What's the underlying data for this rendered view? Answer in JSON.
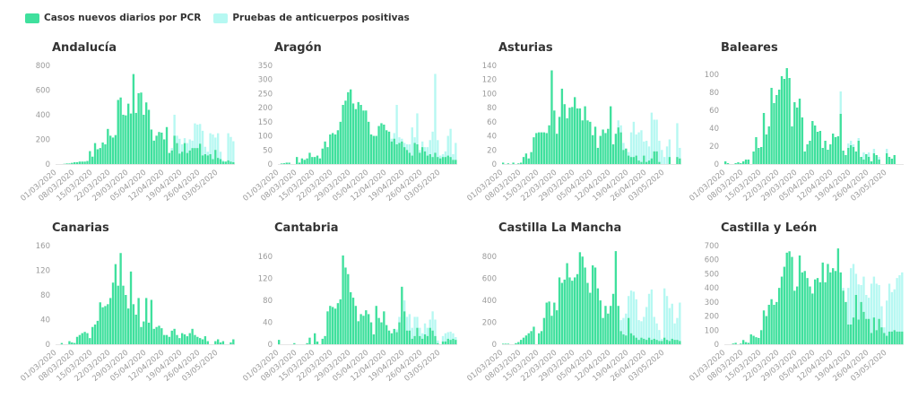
{
  "colors": {
    "pcr": "#3fe09d",
    "antibody": "#b6f8f2"
  },
  "chart_data": {
    "type": "bar",
    "stacked": true,
    "legend": {
      "position": "top-left",
      "pcr_label": "Casos nuevos diarios por PCR",
      "antibody_label": "Pruebas de anticuerpos positivas"
    },
    "start_date": "01/03/2020",
    "x_tick_labels": [
      "01/03/2020",
      "08/03/2020",
      "15/03/2020",
      "22/03/2020",
      "29/03/2020",
      "05/04/2020",
      "12/04/2020",
      "19/04/2020",
      "26/04/2020",
      "03/05/2020"
    ],
    "x_tick_every_days": 7,
    "antibody_start_date": "14/04/2020",
    "panels": [
      {
        "title": "Andalucía",
        "ylim": [
          0,
          800
        ],
        "yticks": [
          0,
          200,
          400,
          600,
          800
        ],
        "pcr": [
          0,
          0,
          0,
          2,
          5,
          5,
          10,
          15,
          15,
          20,
          20,
          20,
          25,
          105,
          60,
          170,
          120,
          130,
          175,
          160,
          285,
          230,
          215,
          235,
          520,
          540,
          400,
          395,
          490,
          410,
          730,
          415,
          575,
          580,
          400,
          500,
          440,
          280,
          190,
          230,
          260,
          255,
          200,
          300,
          90,
          110,
          230,
          170,
          85,
          100,
          170,
          90,
          110,
          130,
          130,
          130,
          165,
          70,
          80,
          70,
          80,
          40,
          115,
          50,
          40,
          20,
          20,
          30,
          20,
          15
        ],
        "antibody": [
          0,
          20,
          170,
          60,
          120,
          60,
          40,
          80,
          90,
          60,
          200,
          190,
          160,
          200,
          60,
          30,
          170,
          200,
          100,
          200,
          60,
          10,
          0,
          220,
          200,
          170
        ]
      },
      {
        "title": "Aragón",
        "ylim": [
          0,
          350
        ],
        "yticks": [
          0,
          50,
          100,
          150,
          200,
          250,
          300,
          350
        ],
        "pcr": [
          0,
          2,
          3,
          5,
          5,
          0,
          0,
          25,
          5,
          20,
          15,
          20,
          40,
          25,
          25,
          30,
          20,
          55,
          80,
          60,
          105,
          110,
          105,
          120,
          150,
          210,
          225,
          255,
          265,
          215,
          195,
          220,
          210,
          190,
          190,
          150,
          105,
          100,
          100,
          135,
          145,
          140,
          120,
          115,
          80,
          90,
          70,
          75,
          80,
          60,
          50,
          40,
          30,
          75,
          70,
          40,
          60,
          45,
          30,
          35,
          25,
          40,
          25,
          20,
          25,
          25,
          30,
          25,
          15,
          15
        ],
        "antibody": [
          10,
          20,
          140,
          20,
          10,
          15,
          20,
          30,
          100,
          20,
          110,
          10,
          20,
          15,
          30,
          50,
          90,
          280,
          60,
          10,
          10,
          20,
          70,
          100,
          20,
          60
        ]
      },
      {
        "title": "Asturias",
        "ylim": [
          0,
          140
        ],
        "yticks": [
          0,
          20,
          40,
          60,
          80,
          100,
          120,
          140
        ],
        "pcr": [
          2,
          0,
          1,
          0,
          2,
          0,
          1,
          2,
          10,
          15,
          8,
          17,
          38,
          44,
          45,
          45,
          45,
          44,
          55,
          133,
          76,
          43,
          67,
          107,
          85,
          65,
          80,
          81,
          95,
          79,
          79,
          62,
          82,
          62,
          60,
          41,
          53,
          23,
          40,
          49,
          44,
          50,
          82,
          28,
          43,
          52,
          45,
          20,
          22,
          12,
          10,
          10,
          12,
          5,
          3,
          12,
          3,
          5,
          8,
          18,
          18,
          3,
          0,
          0,
          0,
          10,
          0,
          0,
          10,
          8
        ],
        "antibody": [
          0,
          10,
          10,
          10,
          0,
          5,
          35,
          50,
          30,
          40,
          45,
          20,
          30,
          20,
          65,
          45,
          45,
          30,
          20,
          10,
          25,
          25,
          0,
          0,
          48,
          15
        ]
      },
      {
        "title": "Baleares",
        "ylim": [
          0,
          110
        ],
        "yticks": [
          0,
          20,
          40,
          60,
          80,
          100
        ],
        "pcr": [
          3,
          1,
          0,
          0,
          1,
          2,
          1,
          3,
          5,
          5,
          0,
          14,
          30,
          18,
          19,
          57,
          33,
          42,
          85,
          68,
          77,
          83,
          98,
          95,
          107,
          96,
          42,
          69,
          63,
          73,
          52,
          14,
          22,
          26,
          48,
          43,
          36,
          37,
          18,
          26,
          16,
          22,
          34,
          30,
          31,
          56,
          15,
          10,
          18,
          21,
          19,
          14,
          26,
          8,
          5,
          11,
          8,
          3,
          12,
          10,
          5,
          0,
          0,
          12,
          8,
          6,
          10,
          0,
          0,
          0
        ],
        "antibody": [
          0,
          25,
          0,
          0,
          5,
          5,
          3,
          0,
          3,
          0,
          8,
          0,
          5,
          0,
          5,
          0,
          3,
          0,
          0,
          5,
          0,
          0,
          0,
          0,
          0,
          0
        ]
      },
      {
        "title": "Canarias",
        "ylim": [
          0,
          160
        ],
        "yticks": [
          0,
          40,
          80,
          120,
          160
        ],
        "pcr": [
          0,
          0,
          2,
          0,
          0,
          5,
          3,
          2,
          12,
          15,
          18,
          20,
          18,
          10,
          28,
          32,
          38,
          68,
          60,
          62,
          65,
          75,
          100,
          130,
          95,
          148,
          95,
          80,
          58,
          118,
          65,
          48,
          75,
          28,
          37,
          75,
          35,
          72,
          25,
          28,
          30,
          26,
          15,
          15,
          12,
          22,
          25,
          15,
          10,
          18,
          16,
          13,
          18,
          25,
          15,
          12,
          10,
          8,
          13,
          5,
          0,
          0,
          5,
          8,
          3,
          5,
          0,
          0,
          3,
          8
        ],
        "antibody": []
      },
      {
        "title": "Cantabria",
        "ylim": [
          0,
          180
        ],
        "yticks": [
          0,
          40,
          80,
          120,
          160
        ],
        "pcr": [
          8,
          0,
          0,
          0,
          0,
          0,
          2,
          0,
          0,
          0,
          0,
          2,
          12,
          0,
          20,
          5,
          0,
          10,
          15,
          60,
          70,
          68,
          65,
          75,
          82,
          162,
          140,
          128,
          95,
          85,
          70,
          42,
          55,
          52,
          62,
          55,
          40,
          18,
          70,
          48,
          40,
          60,
          35,
          25,
          20,
          28,
          22,
          40,
          105,
          60,
          25,
          25,
          10,
          15,
          30,
          15,
          10,
          18,
          15,
          30,
          25,
          15,
          2,
          0,
          5,
          5,
          10,
          8,
          10,
          8
        ],
        "antibody": [
          0,
          0,
          5,
          10,
          0,
          20,
          25,
          30,
          20,
          35,
          20,
          15,
          10,
          20,
          15,
          15,
          35,
          30,
          5,
          0,
          10,
          15,
          12,
          15,
          10,
          5
        ]
      },
      {
        "title": "Castilla La Mancha",
        "ylim": [
          0,
          900
        ],
        "yticks": [
          0,
          200,
          400,
          600,
          800
        ],
        "pcr": [
          5,
          5,
          5,
          0,
          0,
          10,
          20,
          40,
          60,
          80,
          100,
          120,
          160,
          0,
          100,
          120,
          240,
          380,
          390,
          260,
          380,
          310,
          610,
          560,
          590,
          740,
          610,
          580,
          610,
          640,
          840,
          800,
          700,
          560,
          470,
          720,
          700,
          510,
          400,
          240,
          350,
          280,
          350,
          460,
          850,
          350,
          120,
          90,
          80,
          240,
          100,
          80,
          60,
          40,
          60,
          50,
          40,
          60,
          40,
          50,
          40,
          30,
          30,
          60,
          40,
          30,
          50,
          40,
          40,
          30
        ],
        "antibody": [
          0,
          0,
          100,
          150,
          200,
          200,
          390,
          400,
          350,
          180,
          150,
          200,
          300,
          400,
          460,
          200,
          150,
          100,
          20,
          450,
          400,
          300,
          320,
          150,
          200,
          350
        ]
      },
      {
        "title": "Castilla y León",
        "ylim": [
          0,
          700
        ],
        "yticks": [
          0,
          100,
          200,
          300,
          400,
          500,
          600,
          700
        ],
        "pcr": [
          0,
          0,
          0,
          5,
          10,
          0,
          5,
          30,
          15,
          10,
          70,
          60,
          50,
          45,
          100,
          240,
          200,
          280,
          320,
          280,
          300,
          400,
          480,
          550,
          650,
          660,
          620,
          380,
          410,
          630,
          510,
          520,
          470,
          410,
          360,
          460,
          470,
          440,
          580,
          440,
          570,
          510,
          540,
          520,
          680,
          510,
          380,
          300,
          140,
          140,
          190,
          350,
          175,
          300,
          230,
          180,
          180,
          80,
          190,
          100,
          180,
          120,
          80,
          60,
          90,
          90,
          100,
          90,
          90,
          90
        ],
        "antibody": [
          0,
          0,
          20,
          0,
          260,
          400,
          380,
          150,
          250,
          120,
          250,
          170,
          150,
          350,
          290,
          330,
          240,
          150,
          40,
          250,
          340,
          280,
          290,
          380,
          400,
          420
        ]
      }
    ]
  }
}
